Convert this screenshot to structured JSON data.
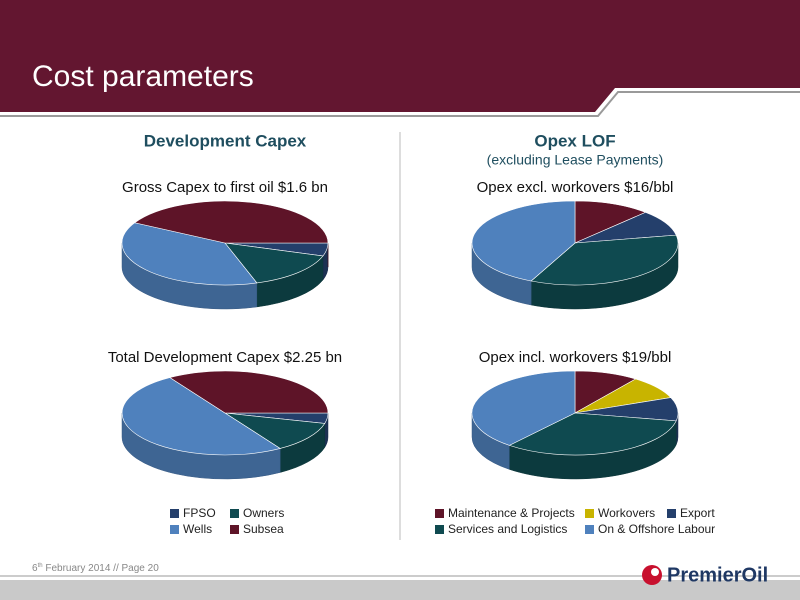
{
  "slide": {
    "title": "Cost parameters",
    "left_heading": "Development Capex",
    "right_heading": "Opex LOF",
    "right_subheading": "(excluding Lease Payments)",
    "footer_day": "6",
    "footer_suffix": "th",
    "footer_rest": " February 2014 // Page 20",
    "logo": "PremierOil"
  },
  "chart_data": [
    {
      "type": "pie",
      "title": "Gross Capex to first oil $1.6 bn",
      "categories": [
        "FPSO",
        "Owners",
        "Wells",
        "Subsea"
      ],
      "values": [
        5,
        15,
        38,
        42
      ],
      "colors": [
        "#243f6b",
        "#0f4a50",
        "#4f81bd",
        "#5e1428"
      ]
    },
    {
      "type": "pie",
      "title": "Total Development Capex $2.25 bn",
      "categories": [
        "FPSO",
        "Owners",
        "Wells",
        "Subsea"
      ],
      "values": [
        4,
        12,
        50,
        34
      ],
      "colors": [
        "#243f6b",
        "#0f4a50",
        "#4f81bd",
        "#5e1428"
      ]
    },
    {
      "type": "pie",
      "title": "Opex excl. workovers $16/bbl",
      "categories": [
        "Maintenance & Projects",
        "Export",
        "Services and Logistics",
        "On & Offshore Labour"
      ],
      "values": [
        12,
        10,
        35,
        43
      ],
      "colors": [
        "#5e1428",
        "#243f6b",
        "#0f4a50",
        "#4f81bd"
      ]
    },
    {
      "type": "pie",
      "title": "Opex incl. workovers $19/bbl",
      "categories": [
        "Maintenance & Projects",
        "Workovers",
        "Export",
        "Services and Logistics",
        "On & Offshore Labour"
      ],
      "values": [
        10,
        9,
        9,
        33,
        39
      ],
      "colors": [
        "#5e1428",
        "#c8b400",
        "#243f6b",
        "#0f4a50",
        "#4f81bd"
      ]
    }
  ]
}
